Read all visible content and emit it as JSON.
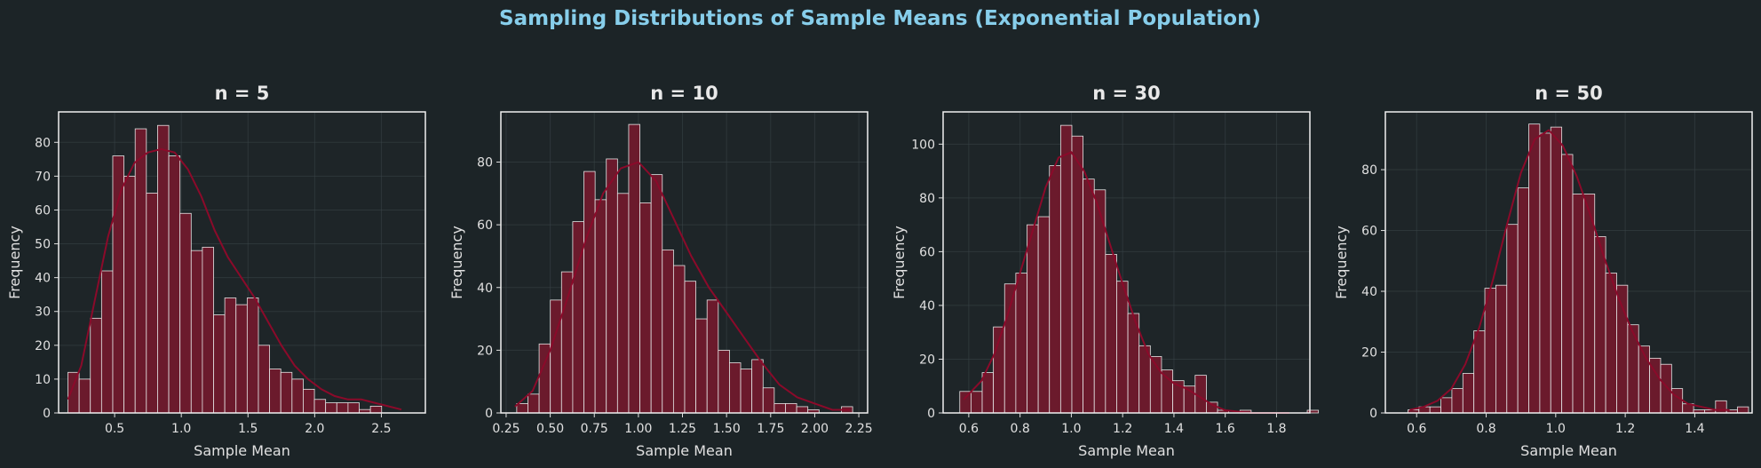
{
  "title": "Sampling Distributions of Sample Means (Exponential Population)",
  "colors": {
    "background": "#1c2427",
    "title": "#87ceeb",
    "bar_fill": "#6b1a2c",
    "bar_edge": "#e6e6e6",
    "kde": "#8b0a2a"
  },
  "chart_data": [
    {
      "type": "histogram",
      "title": "n = 5",
      "xlabel": "Sample Mean",
      "ylabel": "Frequency",
      "xlim": [
        0.08,
        2.83
      ],
      "ylim": [
        0,
        89
      ],
      "xticks": [
        0.5,
        1.0,
        1.5,
        2.0,
        2.5
      ],
      "xtick_labels": [
        "0.5",
        "1.0",
        "1.5",
        "2.0",
        "2.5"
      ],
      "yticks": [
        0,
        10,
        20,
        30,
        40,
        50,
        60,
        70,
        80
      ],
      "ytick_labels": [
        "0",
        "10",
        "20",
        "30",
        "40",
        "50",
        "60",
        "70",
        "80"
      ],
      "bin_start": 0.15,
      "bin_width": 0.084,
      "counts": [
        12,
        10,
        28,
        42,
        76,
        70,
        84,
        65,
        85,
        76,
        59,
        48,
        49,
        29,
        34,
        32,
        34,
        20,
        13,
        12,
        10,
        7,
        4,
        3,
        3,
        3,
        1,
        2
      ],
      "kde": [
        [
          0.15,
          4
        ],
        [
          0.25,
          14
        ],
        [
          0.35,
          33
        ],
        [
          0.45,
          52
        ],
        [
          0.55,
          66
        ],
        [
          0.65,
          74
        ],
        [
          0.75,
          77
        ],
        [
          0.85,
          78
        ],
        [
          0.95,
          77
        ],
        [
          1.05,
          72
        ],
        [
          1.15,
          64
        ],
        [
          1.25,
          54
        ],
        [
          1.35,
          46
        ],
        [
          1.45,
          40
        ],
        [
          1.55,
          34
        ],
        [
          1.65,
          27
        ],
        [
          1.75,
          20
        ],
        [
          1.85,
          14
        ],
        [
          1.95,
          10
        ],
        [
          2.05,
          7
        ],
        [
          2.15,
          5
        ],
        [
          2.25,
          4
        ],
        [
          2.35,
          4
        ],
        [
          2.45,
          3
        ],
        [
          2.55,
          2
        ],
        [
          2.65,
          1
        ]
      ],
      "grid": true
    },
    {
      "type": "histogram",
      "title": "n = 10",
      "xlabel": "Sample Mean",
      "ylabel": "Frequency",
      "xlim": [
        0.22,
        2.3
      ],
      "ylim": [
        0,
        96
      ],
      "xticks": [
        0.25,
        0.5,
        0.75,
        1.0,
        1.25,
        1.5,
        1.75,
        2.0,
        2.25
      ],
      "xtick_labels": [
        "0.25",
        "0.50",
        "0.75",
        "1.00",
        "1.25",
        "1.50",
        "1.75",
        "2.00",
        "2.25"
      ],
      "yticks": [
        0,
        20,
        40,
        60,
        80
      ],
      "ytick_labels": [
        "0",
        "20",
        "40",
        "60",
        "80"
      ],
      "bin_start": 0.31,
      "bin_width": 0.0635,
      "counts": [
        3,
        6,
        22,
        36,
        45,
        61,
        77,
        68,
        81,
        70,
        92,
        67,
        76,
        52,
        47,
        42,
        30,
        36,
        20,
        16,
        14,
        17,
        8,
        3,
        3,
        2,
        1,
        0,
        0,
        2
      ],
      "kde": [
        [
          0.3,
          2
        ],
        [
          0.4,
          7
        ],
        [
          0.5,
          20
        ],
        [
          0.6,
          37
        ],
        [
          0.7,
          55
        ],
        [
          0.8,
          70
        ],
        [
          0.9,
          78
        ],
        [
          1.0,
          80
        ],
        [
          1.1,
          74
        ],
        [
          1.2,
          62
        ],
        [
          1.3,
          50
        ],
        [
          1.4,
          40
        ],
        [
          1.5,
          32
        ],
        [
          1.6,
          24
        ],
        [
          1.7,
          16
        ],
        [
          1.8,
          9
        ],
        [
          1.9,
          5
        ],
        [
          2.0,
          3
        ],
        [
          2.1,
          1
        ],
        [
          2.2,
          1
        ]
      ],
      "grid": true
    },
    {
      "type": "histogram",
      "title": "n = 30",
      "xlabel": "Sample Mean",
      "ylabel": "Frequency",
      "xlim": [
        0.5,
        1.93
      ],
      "ylim": [
        0,
        112
      ],
      "xticks": [
        0.6,
        0.8,
        1.0,
        1.2,
        1.4,
        1.6,
        1.8
      ],
      "xtick_labels": [
        "0.6",
        "0.8",
        "1.0",
        "1.2",
        "1.4",
        "1.6",
        "1.8"
      ],
      "yticks": [
        0,
        20,
        40,
        60,
        80,
        100
      ],
      "ytick_labels": [
        "0",
        "20",
        "40",
        "60",
        "80",
        "100"
      ],
      "bin_start": 0.565,
      "bin_width": 0.0437,
      "counts": [
        8,
        8,
        15,
        32,
        48,
        52,
        70,
        73,
        92,
        107,
        103,
        87,
        83,
        59,
        49,
        37,
        25,
        21,
        16,
        12,
        10,
        14,
        4,
        1,
        0,
        1,
        0,
        0,
        0,
        0,
        0,
        1
      ],
      "kde": [
        [
          0.58,
          5
        ],
        [
          0.65,
          12
        ],
        [
          0.7,
          22
        ],
        [
          0.75,
          36
        ],
        [
          0.8,
          52
        ],
        [
          0.85,
          68
        ],
        [
          0.9,
          84
        ],
        [
          0.95,
          95
        ],
        [
          1.0,
          97
        ],
        [
          1.05,
          90
        ],
        [
          1.1,
          78
        ],
        [
          1.15,
          63
        ],
        [
          1.2,
          48
        ],
        [
          1.25,
          34
        ],
        [
          1.3,
          22
        ],
        [
          1.35,
          15
        ],
        [
          1.4,
          11
        ],
        [
          1.45,
          9
        ],
        [
          1.5,
          6
        ],
        [
          1.55,
          3
        ],
        [
          1.6,
          1
        ],
        [
          1.7,
          0
        ],
        [
          1.85,
          0
        ]
      ],
      "grid": true
    },
    {
      "type": "histogram",
      "title": "n = 50",
      "xlabel": "Sample Mean",
      "ylabel": "Frequency",
      "xlim": [
        0.51,
        1.565
      ],
      "ylim": [
        0,
        99
      ],
      "xticks": [
        0.6,
        0.8,
        1.0,
        1.2,
        1.4
      ],
      "xtick_labels": [
        "0.6",
        "0.8",
        "1.0",
        "1.2",
        "1.4"
      ],
      "yticks": [
        0,
        20,
        40,
        60,
        80
      ],
      "ytick_labels": [
        "0",
        "20",
        "40",
        "60",
        "80"
      ],
      "bin_start": 0.575,
      "bin_width": 0.0316,
      "counts": [
        1,
        2,
        2,
        5,
        8,
        13,
        27,
        41,
        42,
        62,
        74,
        95,
        92,
        94,
        85,
        72,
        72,
        58,
        46,
        42,
        29,
        22,
        18,
        16,
        8,
        3,
        1,
        1,
        4,
        1,
        2
      ],
      "kde": [
        [
          0.58,
          1
        ],
        [
          0.62,
          2
        ],
        [
          0.66,
          4
        ],
        [
          0.7,
          8
        ],
        [
          0.74,
          16
        ],
        [
          0.78,
          28
        ],
        [
          0.82,
          44
        ],
        [
          0.86,
          62
        ],
        [
          0.9,
          79
        ],
        [
          0.94,
          90
        ],
        [
          0.98,
          93
        ],
        [
          1.02,
          88
        ],
        [
          1.06,
          78
        ],
        [
          1.1,
          65
        ],
        [
          1.14,
          51
        ],
        [
          1.18,
          38
        ],
        [
          1.22,
          27
        ],
        [
          1.26,
          18
        ],
        [
          1.3,
          11
        ],
        [
          1.34,
          6
        ],
        [
          1.38,
          3
        ],
        [
          1.42,
          2
        ],
        [
          1.46,
          1
        ],
        [
          1.5,
          1
        ]
      ],
      "grid": true
    }
  ]
}
